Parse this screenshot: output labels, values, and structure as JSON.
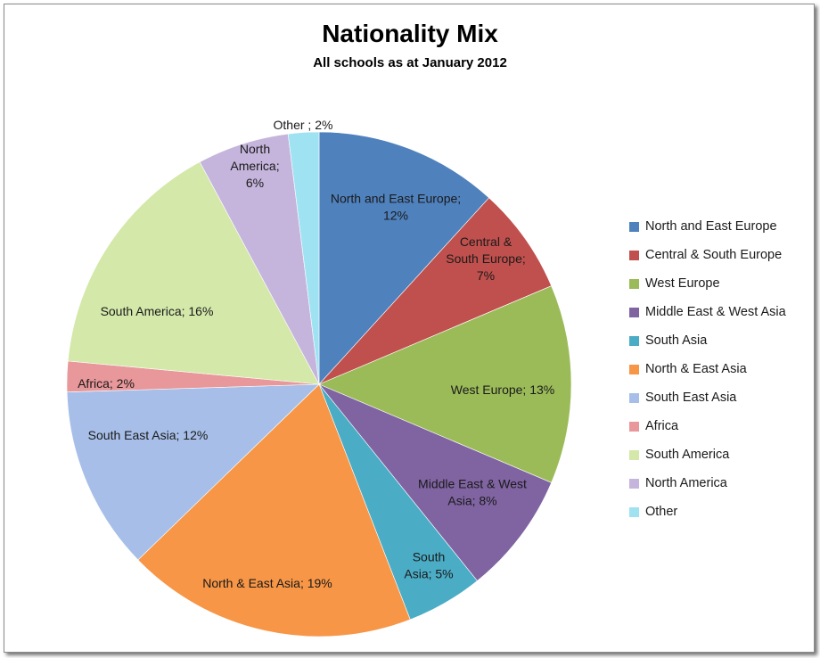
{
  "chart_data": {
    "type": "pie",
    "title": "Nationality Mix",
    "subtitle": "All schools as at January 2012",
    "legend_position": "right",
    "slices": [
      {
        "name": "North and East Europe",
        "value": 12,
        "color": "#4f81bd",
        "label": [
          "North and East Europe;",
          "12%"
        ]
      },
      {
        "name": "Central & South Europe",
        "value": 7,
        "color": "#c0504d",
        "label": [
          "Central &",
          "South Europe;",
          "7%"
        ]
      },
      {
        "name": "West Europe",
        "value": 13,
        "color": "#9bbb59",
        "label": [
          "West Europe; 13%"
        ]
      },
      {
        "name": "Middle East & West Asia",
        "value": 8,
        "color": "#8064a2",
        "label": [
          "Middle East & West",
          "Asia; 8%"
        ]
      },
      {
        "name": "South Asia",
        "value": 5,
        "color": "#4bacc6",
        "label": [
          "South",
          "Asia; 5%"
        ]
      },
      {
        "name": "North & East Asia",
        "value": 19,
        "color": "#f79646",
        "label": [
          "North & East Asia; 19%"
        ]
      },
      {
        "name": "South East Asia",
        "value": 12,
        "color": "#a7bfe8",
        "label": [
          "South East Asia; 12%"
        ]
      },
      {
        "name": "Africa",
        "value": 2,
        "color": "#e8979a",
        "label": [
          "Africa; 2%"
        ]
      },
      {
        "name": "South America",
        "value": 16,
        "color": "#d3e8a9",
        "label": [
          "South America; 16%"
        ]
      },
      {
        "name": "North America",
        "value": 6,
        "color": "#c5b5dc",
        "label": [
          "North",
          "America;",
          "6%"
        ]
      },
      {
        "name": "Other",
        "value": 2,
        "color": "#9fe3f3",
        "label": [
          "Other ; 2%"
        ]
      }
    ]
  }
}
